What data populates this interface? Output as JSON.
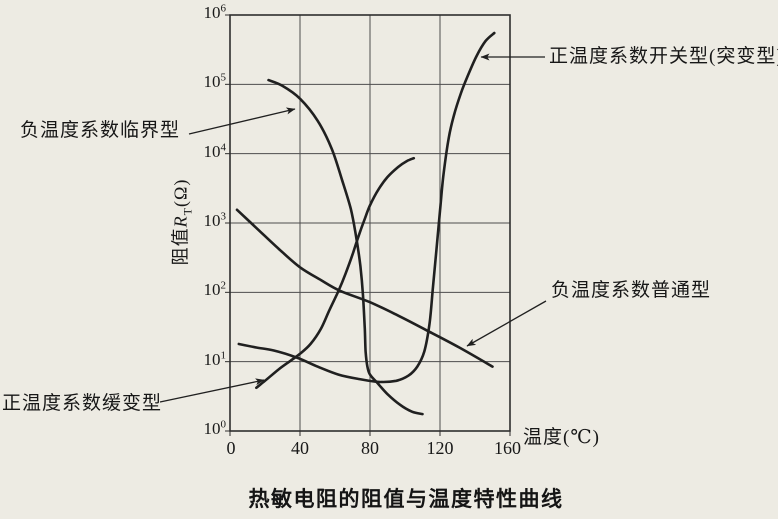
{
  "figure": {
    "title": "热敏电阻的阻值与温度特性曲线",
    "xlabel": "温度(℃)",
    "ylabel_prefix": "阻值",
    "ylabel_symbol": "R",
    "ylabel_sub": "T",
    "ylabel_suffix": "(Ω)"
  },
  "annotations": [
    {
      "name": "ntc-critical",
      "label": "负温度系数临界型"
    },
    {
      "name": "ptc-switching",
      "label": "正温度系数开关型(突变型)"
    },
    {
      "name": "ntc-ordinary",
      "label": "负温度系数普通型"
    },
    {
      "name": "ptc-gradual",
      "label": "正温度系数缓变型"
    }
  ],
  "chart_data": {
    "type": "line",
    "title": "热敏电阻的阻值与温度特性曲线",
    "xlabel": "温度(℃)",
    "ylabel": "阻值RT(Ω)",
    "grid": true,
    "x_axis": {
      "min": 0,
      "max": 160,
      "ticks": [
        0,
        40,
        80,
        120,
        160
      ]
    },
    "y_axis": {
      "scale": "log",
      "base": "10",
      "min_exp": 0,
      "max_exp": 6,
      "tick_exponents": [
        6,
        5,
        4,
        3,
        2,
        1,
        0
      ]
    },
    "series": [
      {
        "name": "ntc-critical",
        "label": "负温度系数临界型",
        "points": [
          [
            22,
            115000
          ],
          [
            30,
            95000
          ],
          [
            40,
            62000
          ],
          [
            50,
            30000
          ],
          [
            58,
            12000
          ],
          [
            64,
            4200
          ],
          [
            69,
            1600
          ],
          [
            72,
            650
          ],
          [
            74.5,
            240
          ],
          [
            76,
            90
          ],
          [
            77,
            30
          ],
          [
            77.5,
            14
          ],
          [
            78.5,
            8.5
          ],
          [
            80,
            6.5
          ],
          [
            84,
            5.0
          ],
          [
            90,
            3.4
          ],
          [
            97,
            2.4
          ],
          [
            104,
            1.9
          ],
          [
            110,
            1.75
          ]
        ]
      },
      {
        "name": "ptc-switching",
        "label": "正温度系数开关型(突变型)",
        "points": [
          [
            5,
            18
          ],
          [
            15,
            16
          ],
          [
            25,
            14.5
          ],
          [
            38,
            11.5
          ],
          [
            50,
            8.5
          ],
          [
            62,
            6.5
          ],
          [
            74,
            5.6
          ],
          [
            85,
            5.1
          ],
          [
            95,
            5.3
          ],
          [
            102,
            6.3
          ],
          [
            107,
            8.5
          ],
          [
            111,
            14
          ],
          [
            114,
            35
          ],
          [
            116,
            120
          ],
          [
            118,
            420
          ],
          [
            120,
            1500
          ],
          [
            122,
            5000
          ],
          [
            125,
            17000
          ],
          [
            128,
            36000
          ],
          [
            132,
            75000
          ],
          [
            136,
            135000
          ],
          [
            141,
            260000
          ],
          [
            146,
            420000
          ],
          [
            151,
            550000
          ]
        ]
      },
      {
        "name": "ntc-ordinary",
        "label": "负温度系数普通型",
        "points": [
          [
            4,
            1550
          ],
          [
            15,
            850
          ],
          [
            28,
            420
          ],
          [
            40,
            230
          ],
          [
            52,
            150
          ],
          [
            63,
            105
          ],
          [
            80,
            72
          ],
          [
            97,
            45
          ],
          [
            114,
            27
          ],
          [
            131,
            16
          ],
          [
            150,
            8.5
          ]
        ]
      },
      {
        "name": "ptc-gradual",
        "label": "正温度系数缓变型",
        "points": [
          [
            15,
            4.2
          ],
          [
            20,
            5.3
          ],
          [
            28,
            7.8
          ],
          [
            35,
            10.5
          ],
          [
            40,
            13
          ],
          [
            46,
            18
          ],
          [
            52,
            30
          ],
          [
            57,
            57
          ],
          [
            62,
            105
          ],
          [
            66,
            185
          ],
          [
            70,
            350
          ],
          [
            73,
            600
          ],
          [
            77,
            1150
          ],
          [
            80,
            1800
          ],
          [
            85,
            3100
          ],
          [
            90,
            4600
          ],
          [
            96,
            6400
          ],
          [
            101,
            7800
          ],
          [
            105,
            8600
          ]
        ]
      }
    ]
  },
  "colors": {
    "background": "#edebe3",
    "ink": "#202020",
    "grid": "#4d4d4d",
    "border": "#2e2e2e"
  }
}
